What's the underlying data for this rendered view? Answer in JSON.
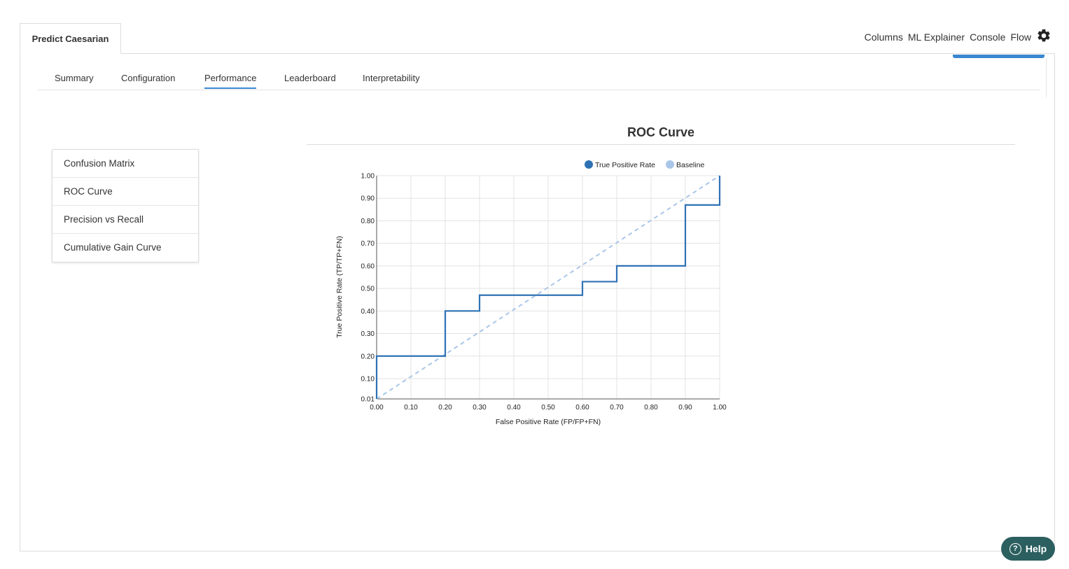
{
  "page_tab": {
    "label": "Predict Caesarian"
  },
  "top_nav": {
    "items": [
      "Columns",
      "ML Explainer",
      "Console",
      "Flow"
    ],
    "settings_icon": "gear-icon"
  },
  "tabs": [
    {
      "label": "Summary",
      "active": false
    },
    {
      "label": "Configuration",
      "active": false
    },
    {
      "label": "Performance",
      "active": true
    },
    {
      "label": "Leaderboard",
      "active": false
    },
    {
      "label": "Interpretability",
      "active": false
    }
  ],
  "side_menu": {
    "items": [
      "Confusion Matrix",
      "ROC Curve",
      "Precision vs Recall",
      "Cumulative Gain Curve"
    ]
  },
  "chart_heading": "ROC Curve",
  "help": {
    "label": "Help",
    "icon": "question-circle-icon"
  },
  "colors": {
    "accent": "#3a86d0",
    "series_tpr": "#2f72b4",
    "series_baseline": "#a9c6e8",
    "help_bg": "#2c5f5f"
  },
  "chart_data": {
    "type": "line",
    "title": "",
    "xlabel": "False Positive Rate (FP/FP+FN)",
    "ylabel": "True Positive Rate (TP/TP+FN)",
    "xlim": [
      0,
      1
    ],
    "ylim": [
      0.01,
      1
    ],
    "x_ticks": [
      "0.00",
      "0.10",
      "0.20",
      "0.30",
      "0.40",
      "0.50",
      "0.60",
      "0.70",
      "0.80",
      "0.90",
      "1.00"
    ],
    "y_ticks": [
      "0.01",
      "0.10",
      "0.20",
      "0.30",
      "0.40",
      "0.50",
      "0.60",
      "0.70",
      "0.80",
      "0.90",
      "1.00"
    ],
    "grid": true,
    "legend_position": "top",
    "series": [
      {
        "name": "True Positive Rate",
        "style": "step",
        "points": [
          [
            0.0,
            0.0
          ],
          [
            0.0,
            0.2
          ],
          [
            0.2,
            0.2
          ],
          [
            0.2,
            0.4
          ],
          [
            0.3,
            0.4
          ],
          [
            0.3,
            0.47
          ],
          [
            0.6,
            0.47
          ],
          [
            0.6,
            0.53
          ],
          [
            0.7,
            0.53
          ],
          [
            0.7,
            0.6
          ],
          [
            0.9,
            0.6
          ],
          [
            0.9,
            0.87
          ],
          [
            1.0,
            0.87
          ],
          [
            1.0,
            1.0
          ]
        ]
      },
      {
        "name": "Baseline",
        "style": "dashed",
        "points": [
          [
            0.0,
            0.0
          ],
          [
            1.0,
            1.0
          ]
        ]
      }
    ]
  }
}
